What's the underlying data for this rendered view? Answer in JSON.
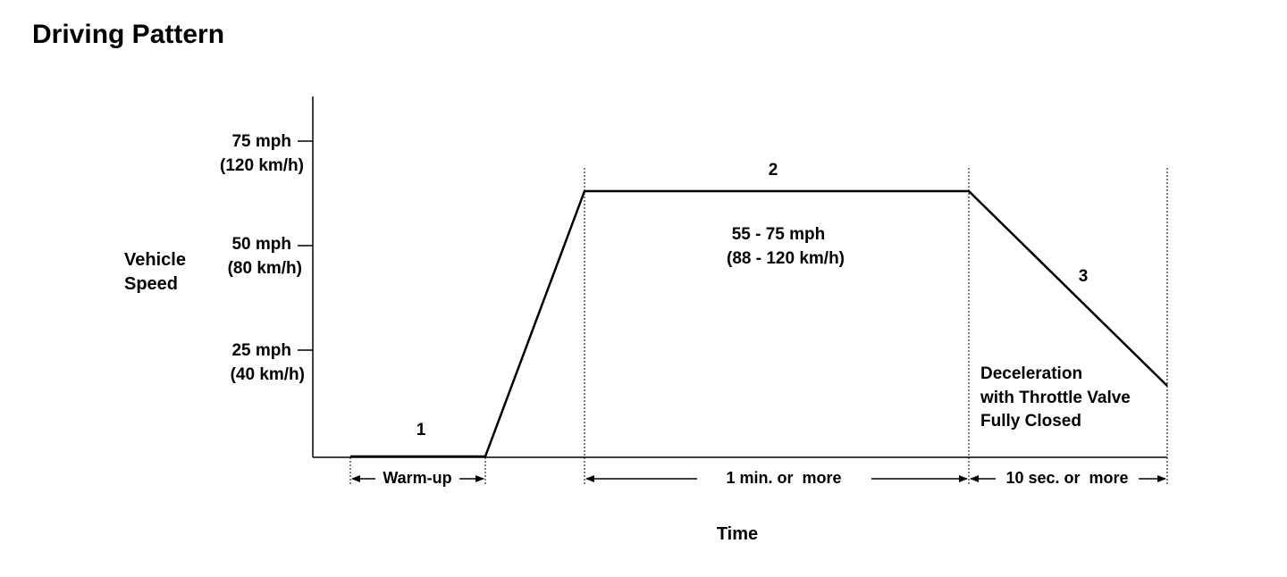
{
  "title": "Driving Pattern",
  "y_axis": {
    "label_line1": "Vehicle",
    "label_line2": "Speed",
    "ticks": [
      {
        "mph": "75 mph",
        "kmh": "(120 km/h)"
      },
      {
        "mph": "50 mph",
        "kmh": "(80 km/h)"
      },
      {
        "mph": "25 mph",
        "kmh": "(40 km/h)"
      }
    ]
  },
  "x_axis": {
    "label": "Time"
  },
  "phases": {
    "phase1": {
      "number": "1",
      "duration": "Warm-up"
    },
    "phase2": {
      "number": "2",
      "speed_line1": "55 - 75 mph",
      "speed_line2": "(88 - 120 km/h)",
      "duration": "1 min. or  more"
    },
    "phase3": {
      "number": "3",
      "note_line1": "Deceleration",
      "note_line2": "with Throttle Valve",
      "note_line3": "Fully Closed",
      "duration": "10 sec. or  more"
    }
  },
  "colors": {
    "ink": "#000000",
    "background": "#ffffff"
  }
}
